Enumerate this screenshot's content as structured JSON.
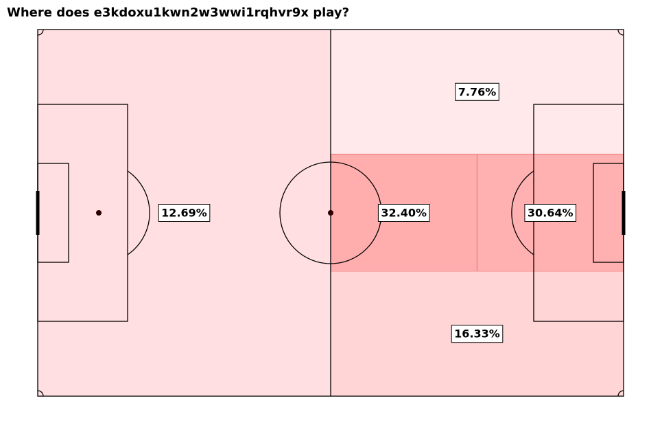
{
  "title": "Where does e3kdoxu1kwn2w3wwi1rqhvr9x play?",
  "chart_data": {
    "type": "heatmap",
    "title": "Where does e3kdoxu1kwn2w3wwi1rqhvr9x play?",
    "pitch": {
      "length": 100,
      "width": 100
    },
    "zones": [
      {
        "name": "defensive half",
        "x": [
          0,
          50
        ],
        "y": [
          0,
          100
        ],
        "value": 12.69,
        "label": "12.69%",
        "color": "#ffdfe1"
      },
      {
        "name": "attacking top flank",
        "x": [
          50,
          100
        ],
        "y": [
          66,
          100
        ],
        "value": 7.76,
        "label": "7.76%",
        "color": "#ffe9ea"
      },
      {
        "name": "attacking central left",
        "x": [
          50,
          75
        ],
        "y": [
          34,
          66
        ],
        "value": 32.4,
        "label": "32.40%",
        "color": "#ffadad"
      },
      {
        "name": "attacking central right",
        "x": [
          75,
          100
        ],
        "y": [
          34,
          66
        ],
        "value": 30.64,
        "label": "30.64%",
        "color": "#ffb0b0"
      },
      {
        "name": "attacking bottom flank",
        "x": [
          50,
          100
        ],
        "y": [
          0,
          34
        ],
        "value": 16.33,
        "label": "16.33%",
        "color": "#ffd5d6"
      }
    ]
  }
}
